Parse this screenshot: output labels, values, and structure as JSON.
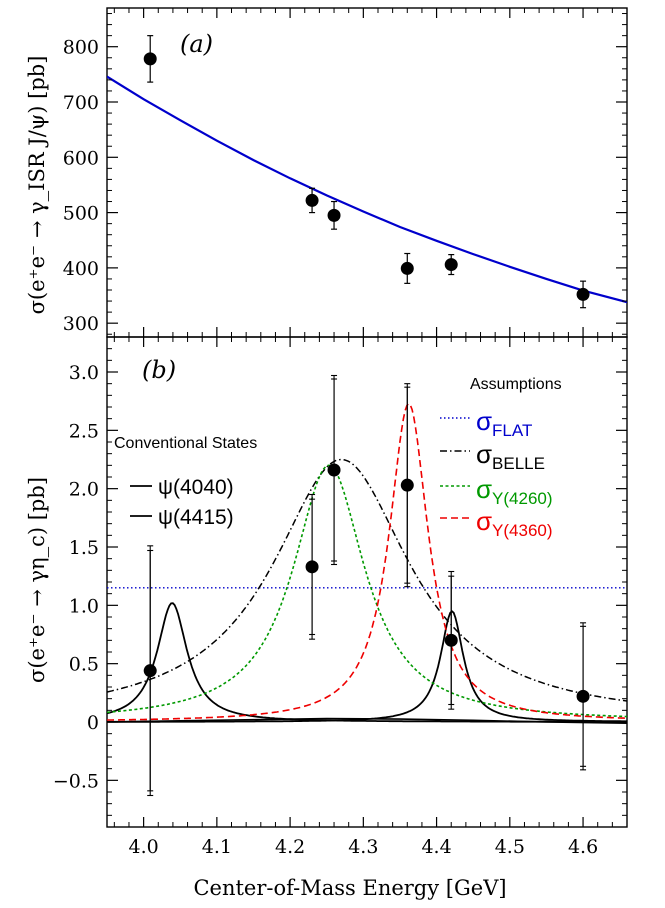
{
  "figure": {
    "xlabel": "Center-of-Mass Energy [GeV]",
    "xlim": [
      3.95,
      4.66
    ],
    "x_ticks": [
      4.0,
      4.1,
      4.2,
      4.3,
      4.4,
      4.5,
      4.6
    ],
    "x_tick_labels": [
      "4.0",
      "4.1",
      "4.2",
      "4.3",
      "4.4",
      "4.5",
      "4.6"
    ]
  },
  "chart_data": [
    {
      "type": "scatter",
      "panel_label": "(a)",
      "ylabel": "σ(e⁺e⁻ → γ_ISR J/ψ) [pb]",
      "ylim": [
        275,
        870
      ],
      "y_ticks": [
        300,
        400,
        500,
        600,
        700,
        800
      ],
      "y_tick_labels": [
        "300",
        "400",
        "500",
        "600",
        "700",
        "800"
      ],
      "points": [
        {
          "x": 4.009,
          "y": 778,
          "err": 42
        },
        {
          "x": 4.23,
          "y": 522,
          "err": 22
        },
        {
          "x": 4.26,
          "y": 495,
          "err": 25
        },
        {
          "x": 4.36,
          "y": 399,
          "err": 27
        },
        {
          "x": 4.42,
          "y": 406,
          "err": 18
        },
        {
          "x": 4.6,
          "y": 352,
          "err": 24
        }
      ],
      "fit_curve": {
        "color": "#0000cc",
        "x": [
          3.95,
          4.0,
          4.05,
          4.1,
          4.15,
          4.2,
          4.25,
          4.3,
          4.35,
          4.4,
          4.45,
          4.5,
          4.55,
          4.6,
          4.66
        ],
        "y": [
          746,
          705,
          667,
          630,
          595,
          562,
          531,
          502,
          474,
          449,
          425,
          402,
          380,
          359,
          338
        ]
      }
    },
    {
      "type": "scatter",
      "panel_label": "(b)",
      "ylabel": "σ(e⁺e⁻ → γη_c) [pb]",
      "ylim": [
        -0.9,
        3.3
      ],
      "y_ticks": [
        -0.5,
        0,
        0.5,
        1.0,
        1.5,
        2.0,
        2.5,
        3.0
      ],
      "y_tick_labels": [
        "−0.5",
        "0",
        "0.5",
        "1.0",
        "1.5",
        "2.0",
        "2.5",
        "3.0"
      ],
      "points": [
        {
          "x": 4.009,
          "y": 0.44,
          "err_stat": 1.03,
          "err_tot": 1.07
        },
        {
          "x": 4.23,
          "y": 1.33,
          "err_stat": 0.58,
          "err_tot": 0.62
        },
        {
          "x": 4.26,
          "y": 2.16,
          "err_stat": 0.78,
          "err_tot": 0.81
        },
        {
          "x": 4.36,
          "y": 2.03,
          "err_stat": 0.84,
          "err_tot": 0.87
        },
        {
          "x": 4.42,
          "y": 0.7,
          "err_stat": 0.55,
          "err_tot": 0.59
        },
        {
          "x": 4.6,
          "y": 0.22,
          "err_stat": 0.6,
          "err_tot": 0.63
        }
      ],
      "legend_conventional": {
        "title": "Conventional States",
        "entries": [
          {
            "label": "ψ(4040)",
            "color": "#000000",
            "style": "solid"
          },
          {
            "label": "ψ(4415)",
            "color": "#000000",
            "style": "solid"
          }
        ]
      },
      "legend_assumptions": {
        "title": "Assumptions",
        "entries": [
          {
            "symbol": "σ",
            "sub": "FLAT",
            "color": "#0000cc",
            "style": "dotted"
          },
          {
            "symbol": "σ",
            "sub": "BELLE",
            "color": "#000000",
            "style": "dashdot"
          },
          {
            "symbol": "σ",
            "sub": "Y(4260)",
            "color": "#009900",
            "style": "dotted"
          },
          {
            "symbol": "σ",
            "sub": "Y(4360)",
            "color": "#ee0000",
            "style": "dashed"
          }
        ]
      },
      "curves": {
        "flat": {
          "value": 1.15,
          "color": "#0000cc"
        },
        "psi4040": {
          "mass": 4.039,
          "width": 0.05,
          "peak": 1.02,
          "color": "#000000"
        },
        "psi4415": {
          "mass": 4.421,
          "width": 0.038,
          "peak": 0.95,
          "color": "#000000"
        },
        "baseline": {
          "x": [
            3.95,
            4.05,
            4.15,
            4.25,
            4.35,
            4.45,
            4.55,
            4.66
          ],
          "y": [
            0.0,
            0.01,
            0.02,
            0.03,
            0.025,
            0.015,
            0.0,
            -0.01
          ],
          "color": "#000000"
        },
        "belle": {
          "mass": 4.27,
          "width": 0.23,
          "peak": 2.25,
          "color": "#000000"
        },
        "y4260": {
          "mass": 4.253,
          "width": 0.12,
          "peak": 2.2,
          "color": "#009900"
        },
        "y4360": {
          "mass": 4.362,
          "width": 0.065,
          "peak": 2.73,
          "color": "#ee0000"
        }
      }
    }
  ]
}
